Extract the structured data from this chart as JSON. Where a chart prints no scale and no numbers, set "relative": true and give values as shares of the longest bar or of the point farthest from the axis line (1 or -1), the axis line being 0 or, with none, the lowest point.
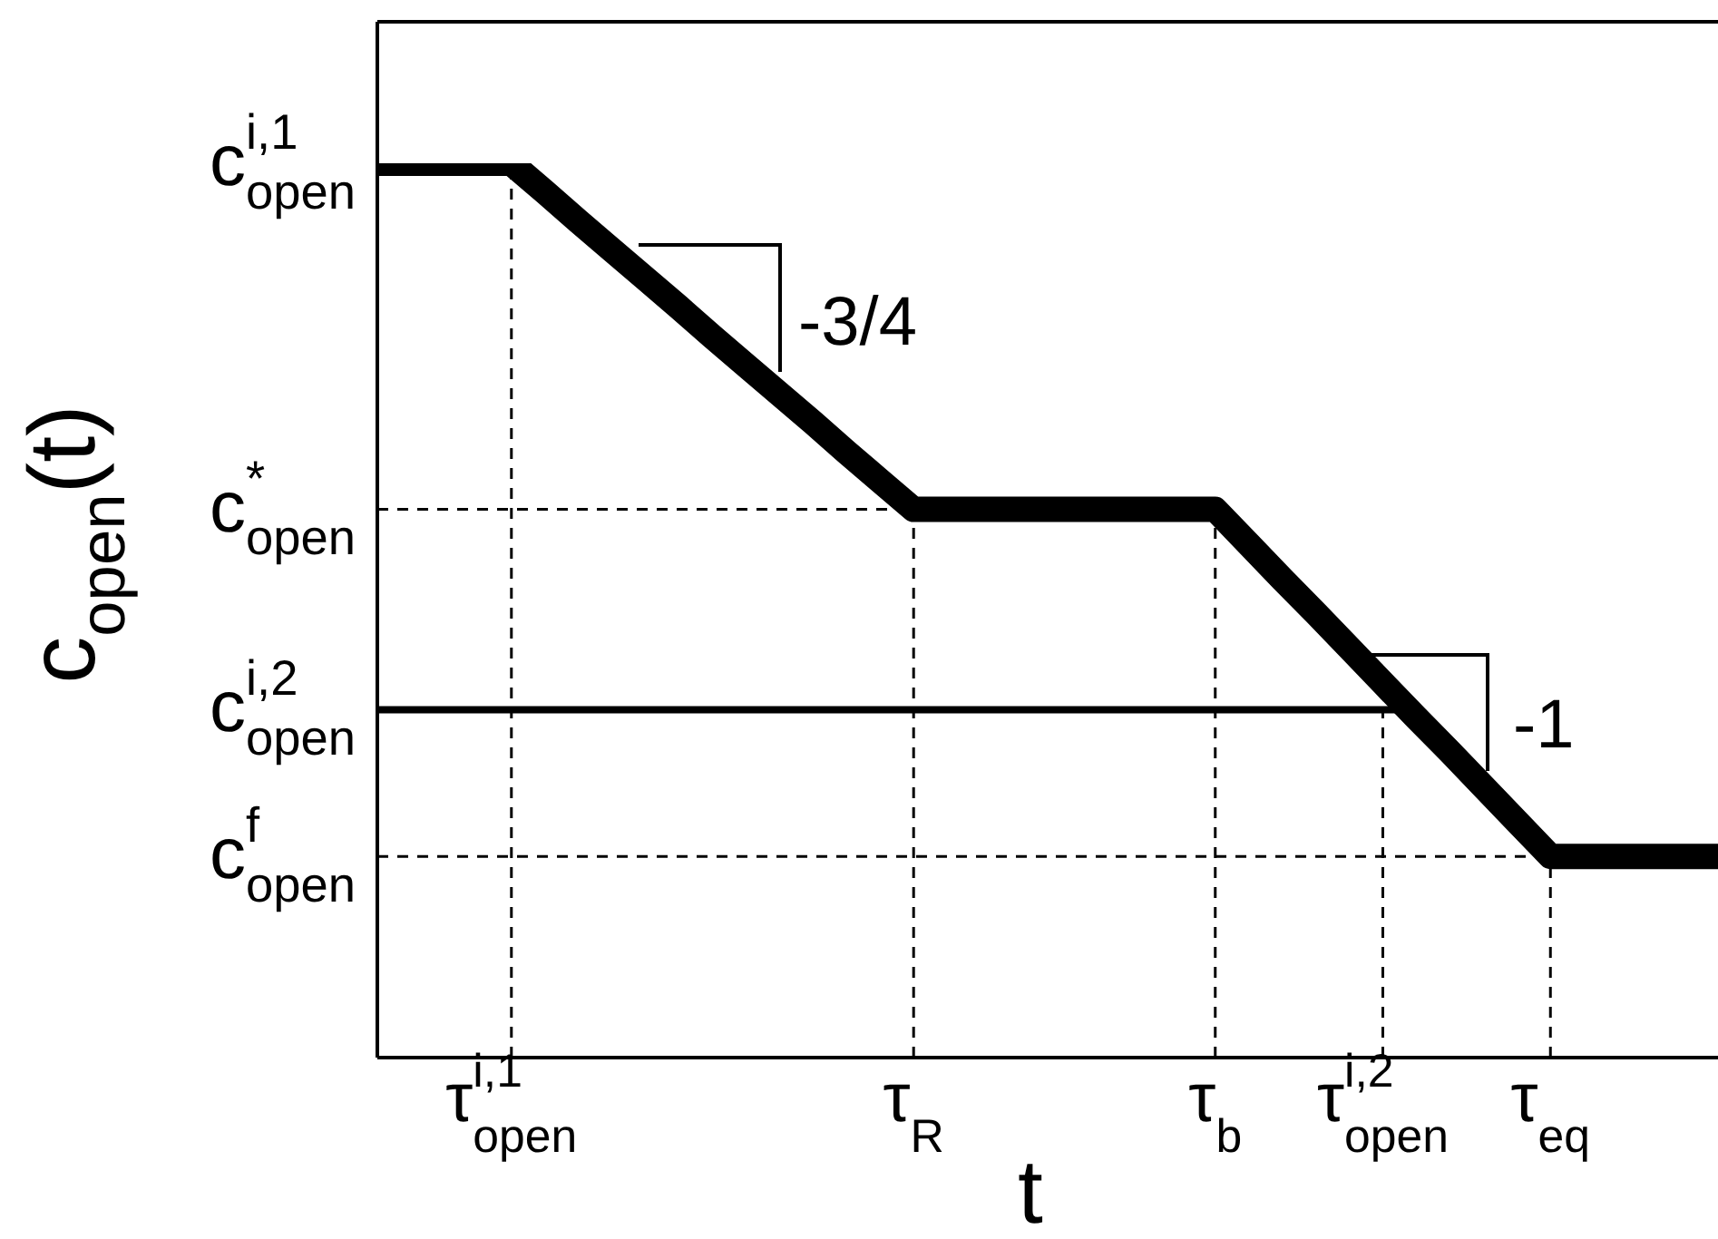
{
  "chart_data": {
    "type": "line",
    "relative": true,
    "ylabel": "c$_{open}$(t)",
    "xlabel": "t",
    "categories": [
      null,
      null,
      null,
      null,
      "τ$^{i,1}$$_{open}$",
      null,
      null,
      null,
      null,
      null,
      null,
      null,
      null,
      null,
      null,
      null,
      "τ$_{R}$",
      null,
      null,
      null,
      null,
      null,
      null,
      null,
      null,
      "τ$_{b}$",
      null,
      null,
      null,
      null,
      "τ$^{i,2}$$_{open}$",
      null,
      null,
      null,
      null,
      "τ$_{eq}$",
      null,
      null,
      null,
      null,
      null
    ],
    "series": [
      {
        "color": "#000000",
        "values": [
          1,
          1,
          1,
          1,
          1,
          0.968,
          0.935,
          0.903,
          0.871,
          0.839,
          0.806,
          0.774,
          0.742,
          0.71,
          0.677,
          0.645,
          0.613,
          0.613,
          0.613,
          0.613,
          0.613,
          0.613,
          0.613,
          0.613,
          0.613,
          0.613,
          0.574,
          0.535,
          0.497,
          0.458,
          0.419,
          0.38,
          0.342,
          0.303,
          0.264,
          0.225,
          0.225,
          0.225,
          0.225,
          0.225,
          0.225
        ]
      }
    ],
    "line_style": "solid",
    "ref_lines": [
      {
        "axis": "y",
        "value": 0.613,
        "label": "c$^{*}$$_{open}$",
        "line_style": "dashed"
      },
      {
        "axis": "y",
        "value": 0.389,
        "label": "c$^{i,2}$$_{open}$",
        "line_style": "solid"
      },
      {
        "axis": "y",
        "value": 0.225,
        "label": "c$^{f}$$_{open}$",
        "line_style": "dashed"
      },
      {
        "axis": "x",
        "value": "τ$^{i,1}$$_{open}$",
        "line_style": "dashed"
      },
      {
        "axis": "x",
        "value": "τ$_{R}$",
        "line_style": "dashed"
      },
      {
        "axis": "x",
        "value": "τ$_{b}$",
        "line_style": "dashed"
      },
      {
        "axis": "x",
        "value": "τ$^{i,2}$$_{open}$",
        "line_style": "dashed"
      },
      {
        "axis": "x",
        "value": "τ$_{eq}$",
        "line_style": "dashed"
      }
    ],
    "annotations": [
      "c$^{i,1}$$_{open}$",
      "-3/4",
      "-1"
    ]
  }
}
